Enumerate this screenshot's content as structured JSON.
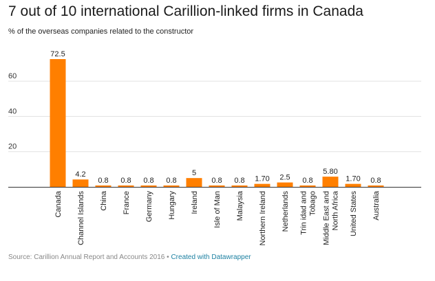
{
  "title": "7 out of 10 international Carillion-linked firms in Canada",
  "subtitle": "% of the overseas companies related to the constructor",
  "footer": {
    "source": "Source: Carillion Annual Report and Accounts 2016",
    "separator": "•",
    "credit": "Created with Datawrapper"
  },
  "chart_data": {
    "type": "bar",
    "title": "7 out of 10 international Carillion-linked firms in Canada",
    "subtitle": "% of the overseas companies related to the constructor",
    "categories": [
      "Canada",
      "Channel Islands",
      "China",
      "France",
      "Germany",
      "Hungary",
      "Ireland",
      "Isle of Man",
      "Malaysia",
      "Northern Ireland",
      "Netherlands",
      "Trin idad and Tobago",
      "Middle East and North Africa",
      "United States",
      "Australia"
    ],
    "x_label_lines": [
      [
        "Canada"
      ],
      [
        "Channel Islands"
      ],
      [
        "China"
      ],
      [
        "France"
      ],
      [
        "Germany"
      ],
      [
        "Hungary"
      ],
      [
        "Ireland"
      ],
      [
        "Isle of Man"
      ],
      [
        "Malaysia"
      ],
      [
        "Northern Ireland"
      ],
      [
        "Netherlands"
      ],
      [
        "Trin idad and",
        "Tobago"
      ],
      [
        "Middle East and",
        "North Africa"
      ],
      [
        "United States"
      ],
      [
        "Australia"
      ]
    ],
    "values": [
      72.5,
      4.2,
      0.8,
      0.8,
      0.8,
      0.8,
      5,
      0.8,
      0.8,
      1.7,
      2.5,
      0.8,
      5.8,
      1.7,
      0.8
    ],
    "value_labels": [
      "72.5",
      "4.2",
      "0.8",
      "0.8",
      "0.8",
      "0.8",
      "5",
      "0.8",
      "0.8",
      "1.70",
      "2.5",
      "0.8",
      "5.80",
      "1.70",
      "0.8"
    ],
    "yticks": [
      20,
      40,
      60
    ],
    "ylim": [
      0,
      72.5
    ],
    "grid": true,
    "bar_color": "#ff7f00"
  }
}
